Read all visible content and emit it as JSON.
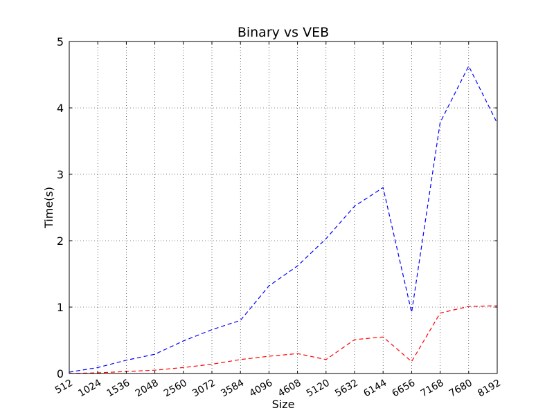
{
  "chart_data": {
    "type": "line",
    "title": "Binary vs VEB",
    "xlabel": "Size",
    "ylabel": "Time(s)",
    "xlim": [
      512,
      8192
    ],
    "ylim": [
      0,
      5
    ],
    "grid": true,
    "x_ticks": [
      "512",
      "1024",
      "1536",
      "2048",
      "2560",
      "3072",
      "3584",
      "4096",
      "4608",
      "5120",
      "5632",
      "6144",
      "6656",
      "7168",
      "7680",
      "8192"
    ],
    "y_ticks": [
      "0",
      "1",
      "2",
      "3",
      "4",
      "5"
    ],
    "x": [
      512,
      1024,
      1536,
      2048,
      2560,
      3072,
      3584,
      4096,
      4608,
      5120,
      5632,
      6144,
      6656,
      7168,
      7680,
      8192
    ],
    "series": [
      {
        "color": "#0000ff",
        "style": "dashed",
        "values": [
          0.02,
          0.09,
          0.2,
          0.29,
          0.49,
          0.66,
          0.8,
          1.32,
          1.62,
          2.03,
          2.52,
          2.8,
          0.92,
          3.78,
          4.63,
          3.77
        ]
      },
      {
        "color": "#ff0000",
        "style": "dashed",
        "values": [
          0.0,
          0.01,
          0.03,
          0.05,
          0.09,
          0.14,
          0.21,
          0.26,
          0.3,
          0.21,
          0.51,
          0.55,
          0.18,
          0.91,
          1.01,
          1.02
        ]
      }
    ]
  }
}
